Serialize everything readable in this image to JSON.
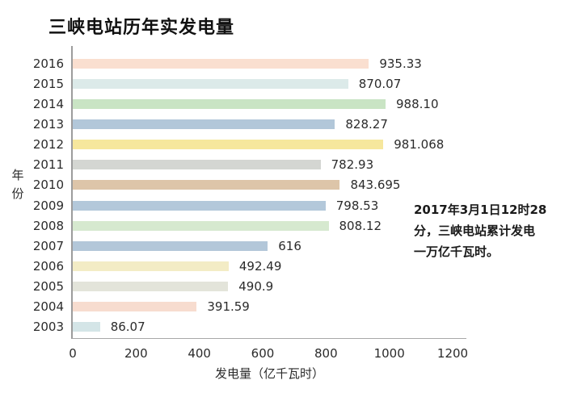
{
  "page": {
    "title": "三峡电站历年实发电量"
  },
  "chart_data": {
    "type": "bar",
    "orientation": "horizontal",
    "title": "三峡电站历年实发电量",
    "xlabel": "发电量（亿千瓦时）",
    "ylabel": "年份",
    "xlim": [
      0,
      1200
    ],
    "xticks": [
      "0",
      "200",
      "400",
      "600",
      "800",
      "1000",
      "1200"
    ],
    "grid": false,
    "legend": "none",
    "categories": [
      "2016",
      "2015",
      "2014",
      "2013",
      "2012",
      "2011",
      "2010",
      "2009",
      "2008",
      "2007",
      "2006",
      "2005",
      "2004",
      "2003"
    ],
    "values": [
      935.33,
      870.07,
      988.1,
      828.27,
      981.068,
      782.93,
      843.695,
      798.53,
      808.12,
      616,
      492.49,
      490.9,
      391.59,
      86.07
    ],
    "value_labels": [
      "935.33",
      "870.07",
      "988.10",
      "828.27",
      "981.068",
      "782.93",
      "843.695",
      "798.53",
      "808.12",
      "616",
      "492.49",
      "490.9",
      "391.59",
      "86.07"
    ],
    "bar_colors": [
      "#fadfd0",
      "#dceae9",
      "#c9e4c4",
      "#b2c7d9",
      "#f6e79d",
      "#d4d6d2",
      "#ddc5a9",
      "#b3c8da",
      "#d6e9cf",
      "#b3c7d9",
      "#f3ecc5",
      "#e3e4da",
      "#f7dccf",
      "#d4e5e7"
    ],
    "annotation_lines": [
      "2017年3月1日12时28",
      "分，三峡电站累计发电",
      "一万亿千瓦时。"
    ]
  },
  "colors": {
    "axis": "#9c9c9c",
    "title_text": "#111111",
    "tick_text": "#2b2b2b",
    "annotation_text": "#1a1a1a",
    "background": "#ffffff"
  }
}
